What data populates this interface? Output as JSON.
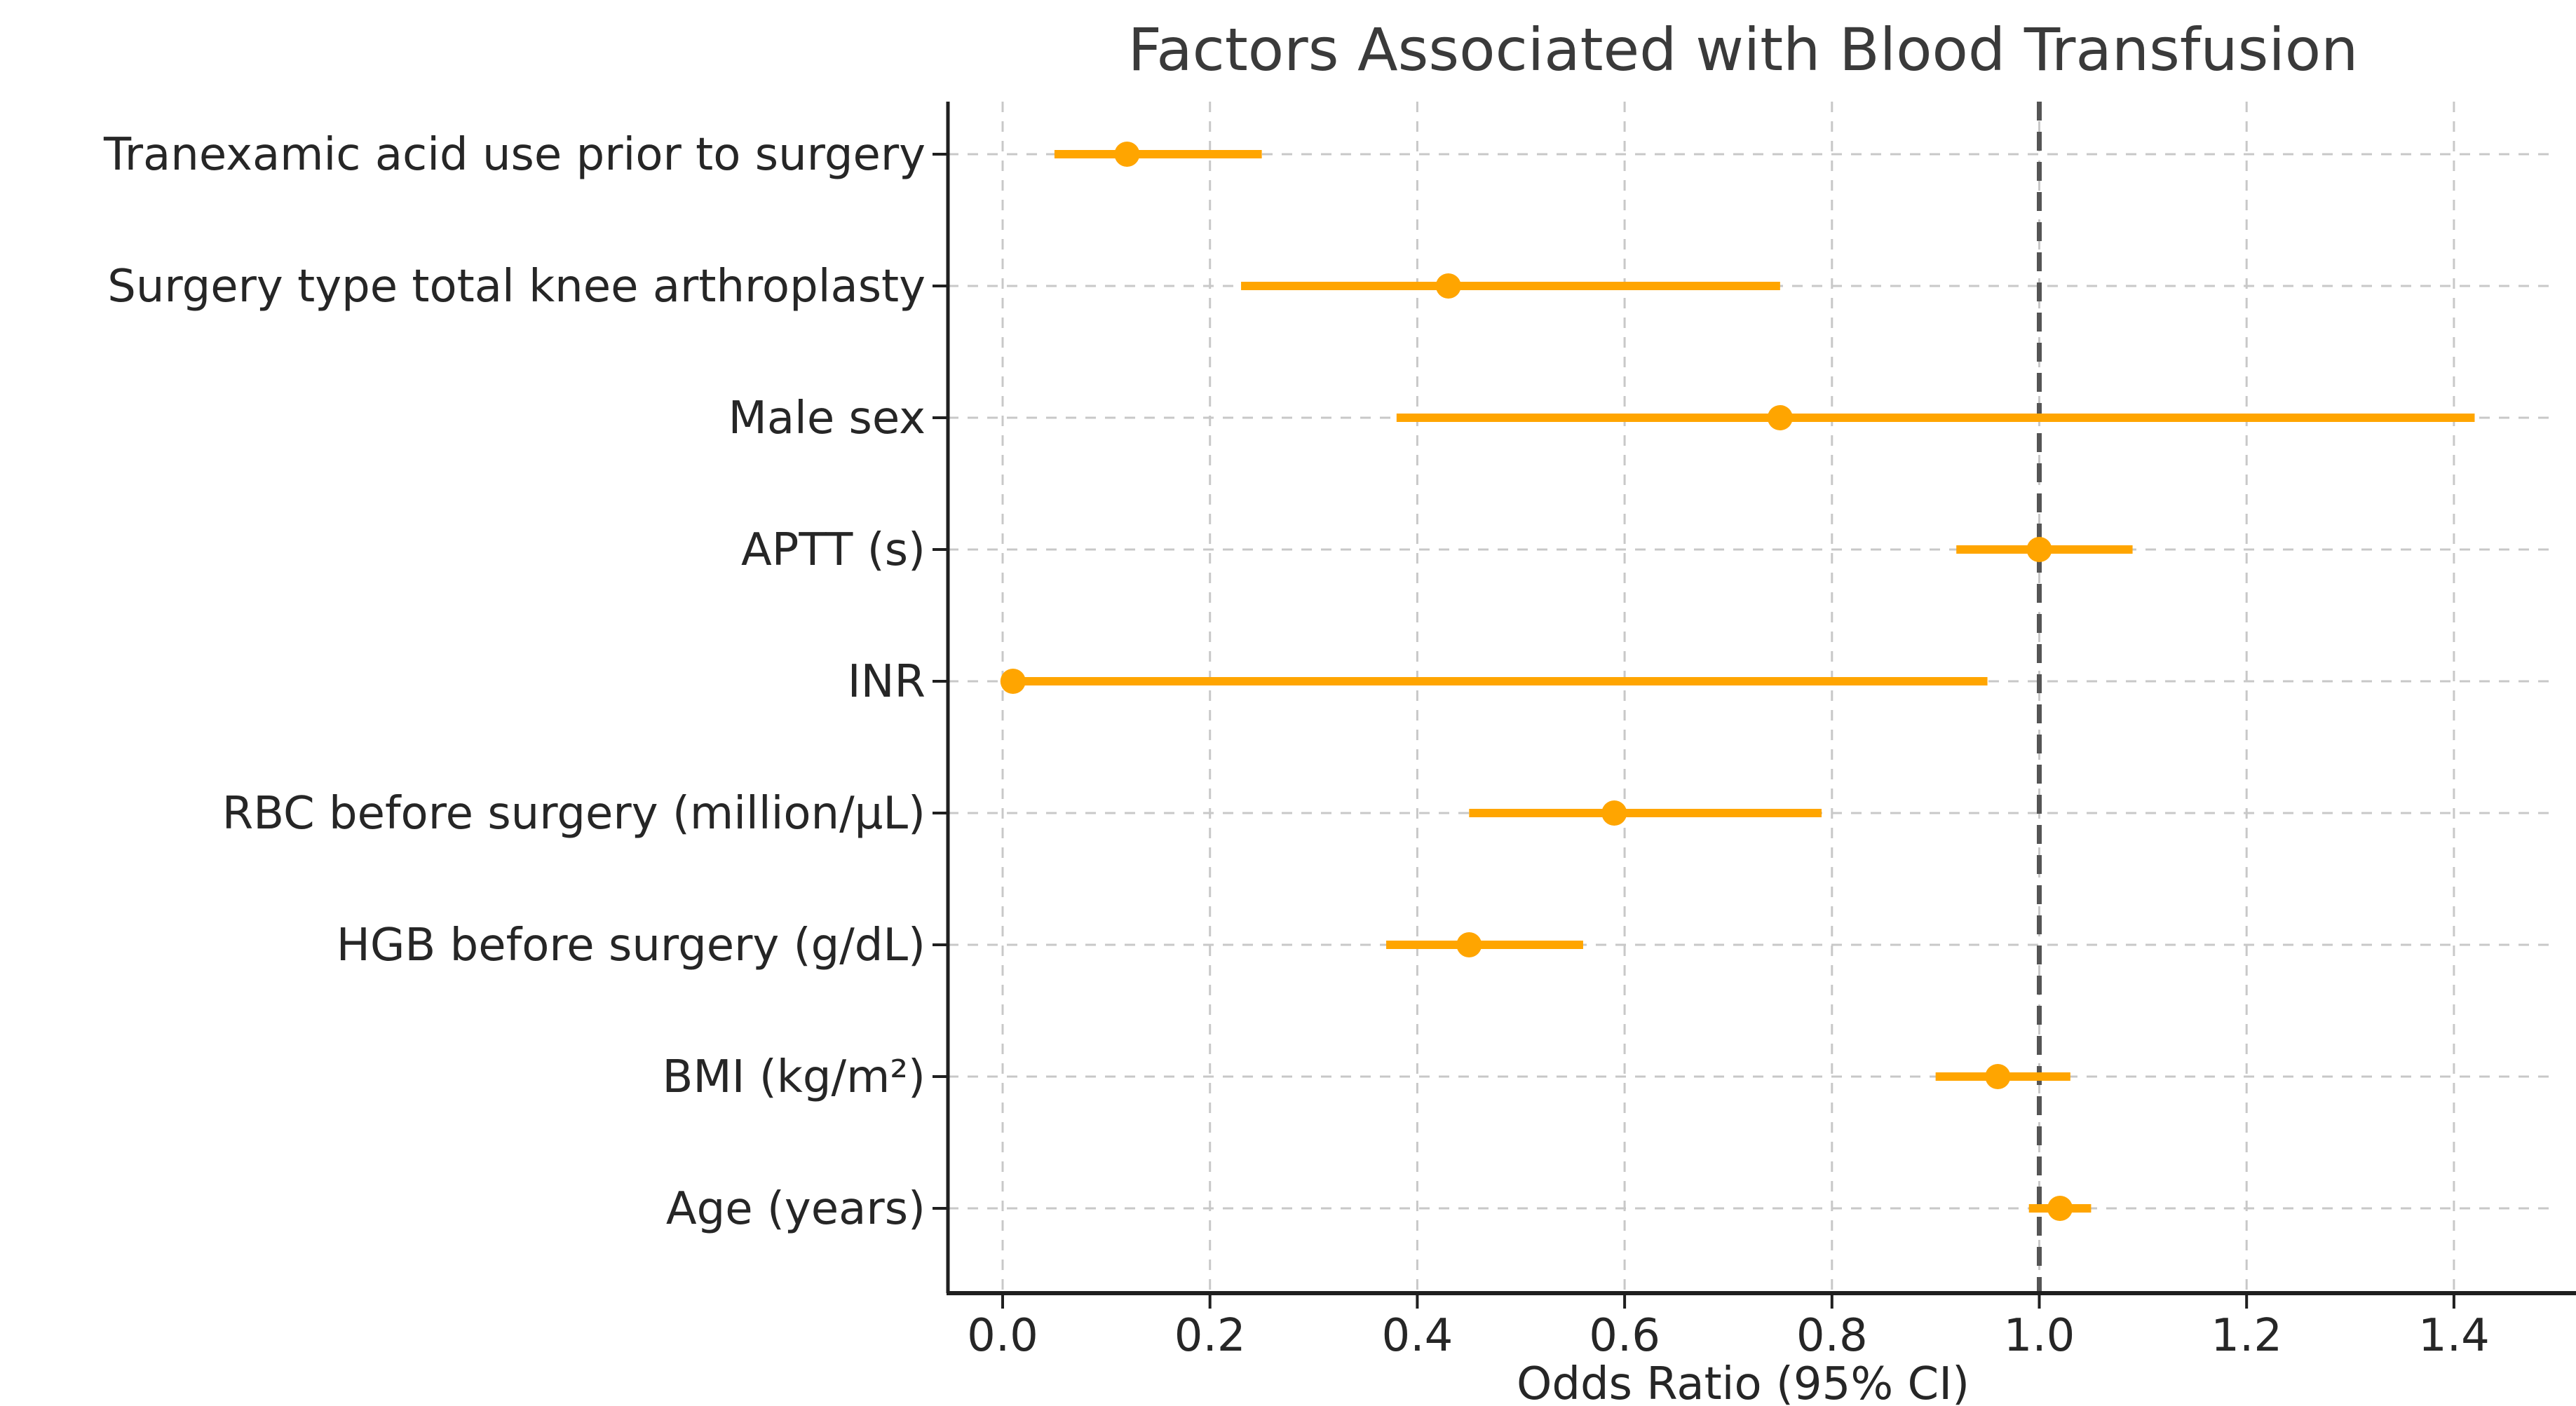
{
  "chart_data": {
    "type": "scatter",
    "subtype": "forest-plot",
    "title": "Factors Associated with Blood Transfusion",
    "xlabel": "Odds Ratio (95% CI)",
    "ylabel": "",
    "xlim": [
      -0.055,
      1.485
    ],
    "xticks": [
      0.0,
      0.2,
      0.4,
      0.6,
      0.8,
      1.0,
      1.2,
      1.4
    ],
    "grid": true,
    "legend": "none",
    "reference_line_x": 1.0,
    "rows": [
      {
        "label": "Tranexamic acid use prior to surgery",
        "or": 0.12,
        "ci_low": 0.05,
        "ci_high": 0.25
      },
      {
        "label": "Surgery type total knee arthroplasty",
        "or": 0.43,
        "ci_low": 0.23,
        "ci_high": 0.75
      },
      {
        "label": "Male sex",
        "or": 0.75,
        "ci_low": 0.38,
        "ci_high": 1.42
      },
      {
        "label": "APTT (s)",
        "or": 1.0,
        "ci_low": 0.92,
        "ci_high": 1.09
      },
      {
        "label": "INR",
        "or": 0.01,
        "ci_low": 0.0,
        "ci_high": 0.95
      },
      {
        "label": "RBC before surgery (million/μL)",
        "or": 0.59,
        "ci_low": 0.45,
        "ci_high": 0.79
      },
      {
        "label": "HGB before surgery (g/dL)",
        "or": 0.45,
        "ci_low": 0.37,
        "ci_high": 0.56
      },
      {
        "label": "BMI (kg/m²)",
        "or": 0.96,
        "ci_low": 0.9,
        "ci_high": 1.03
      },
      {
        "label": "Age (years)",
        "or": 1.02,
        "ci_low": 0.99,
        "ci_high": 1.05
      }
    ],
    "colors": {
      "marker": "#FFA500",
      "ci_line": "#FFA500",
      "reference_line": "#555555",
      "grid": "#c8c8c8",
      "text": "#262626",
      "axis": "#1f1f1f"
    }
  }
}
